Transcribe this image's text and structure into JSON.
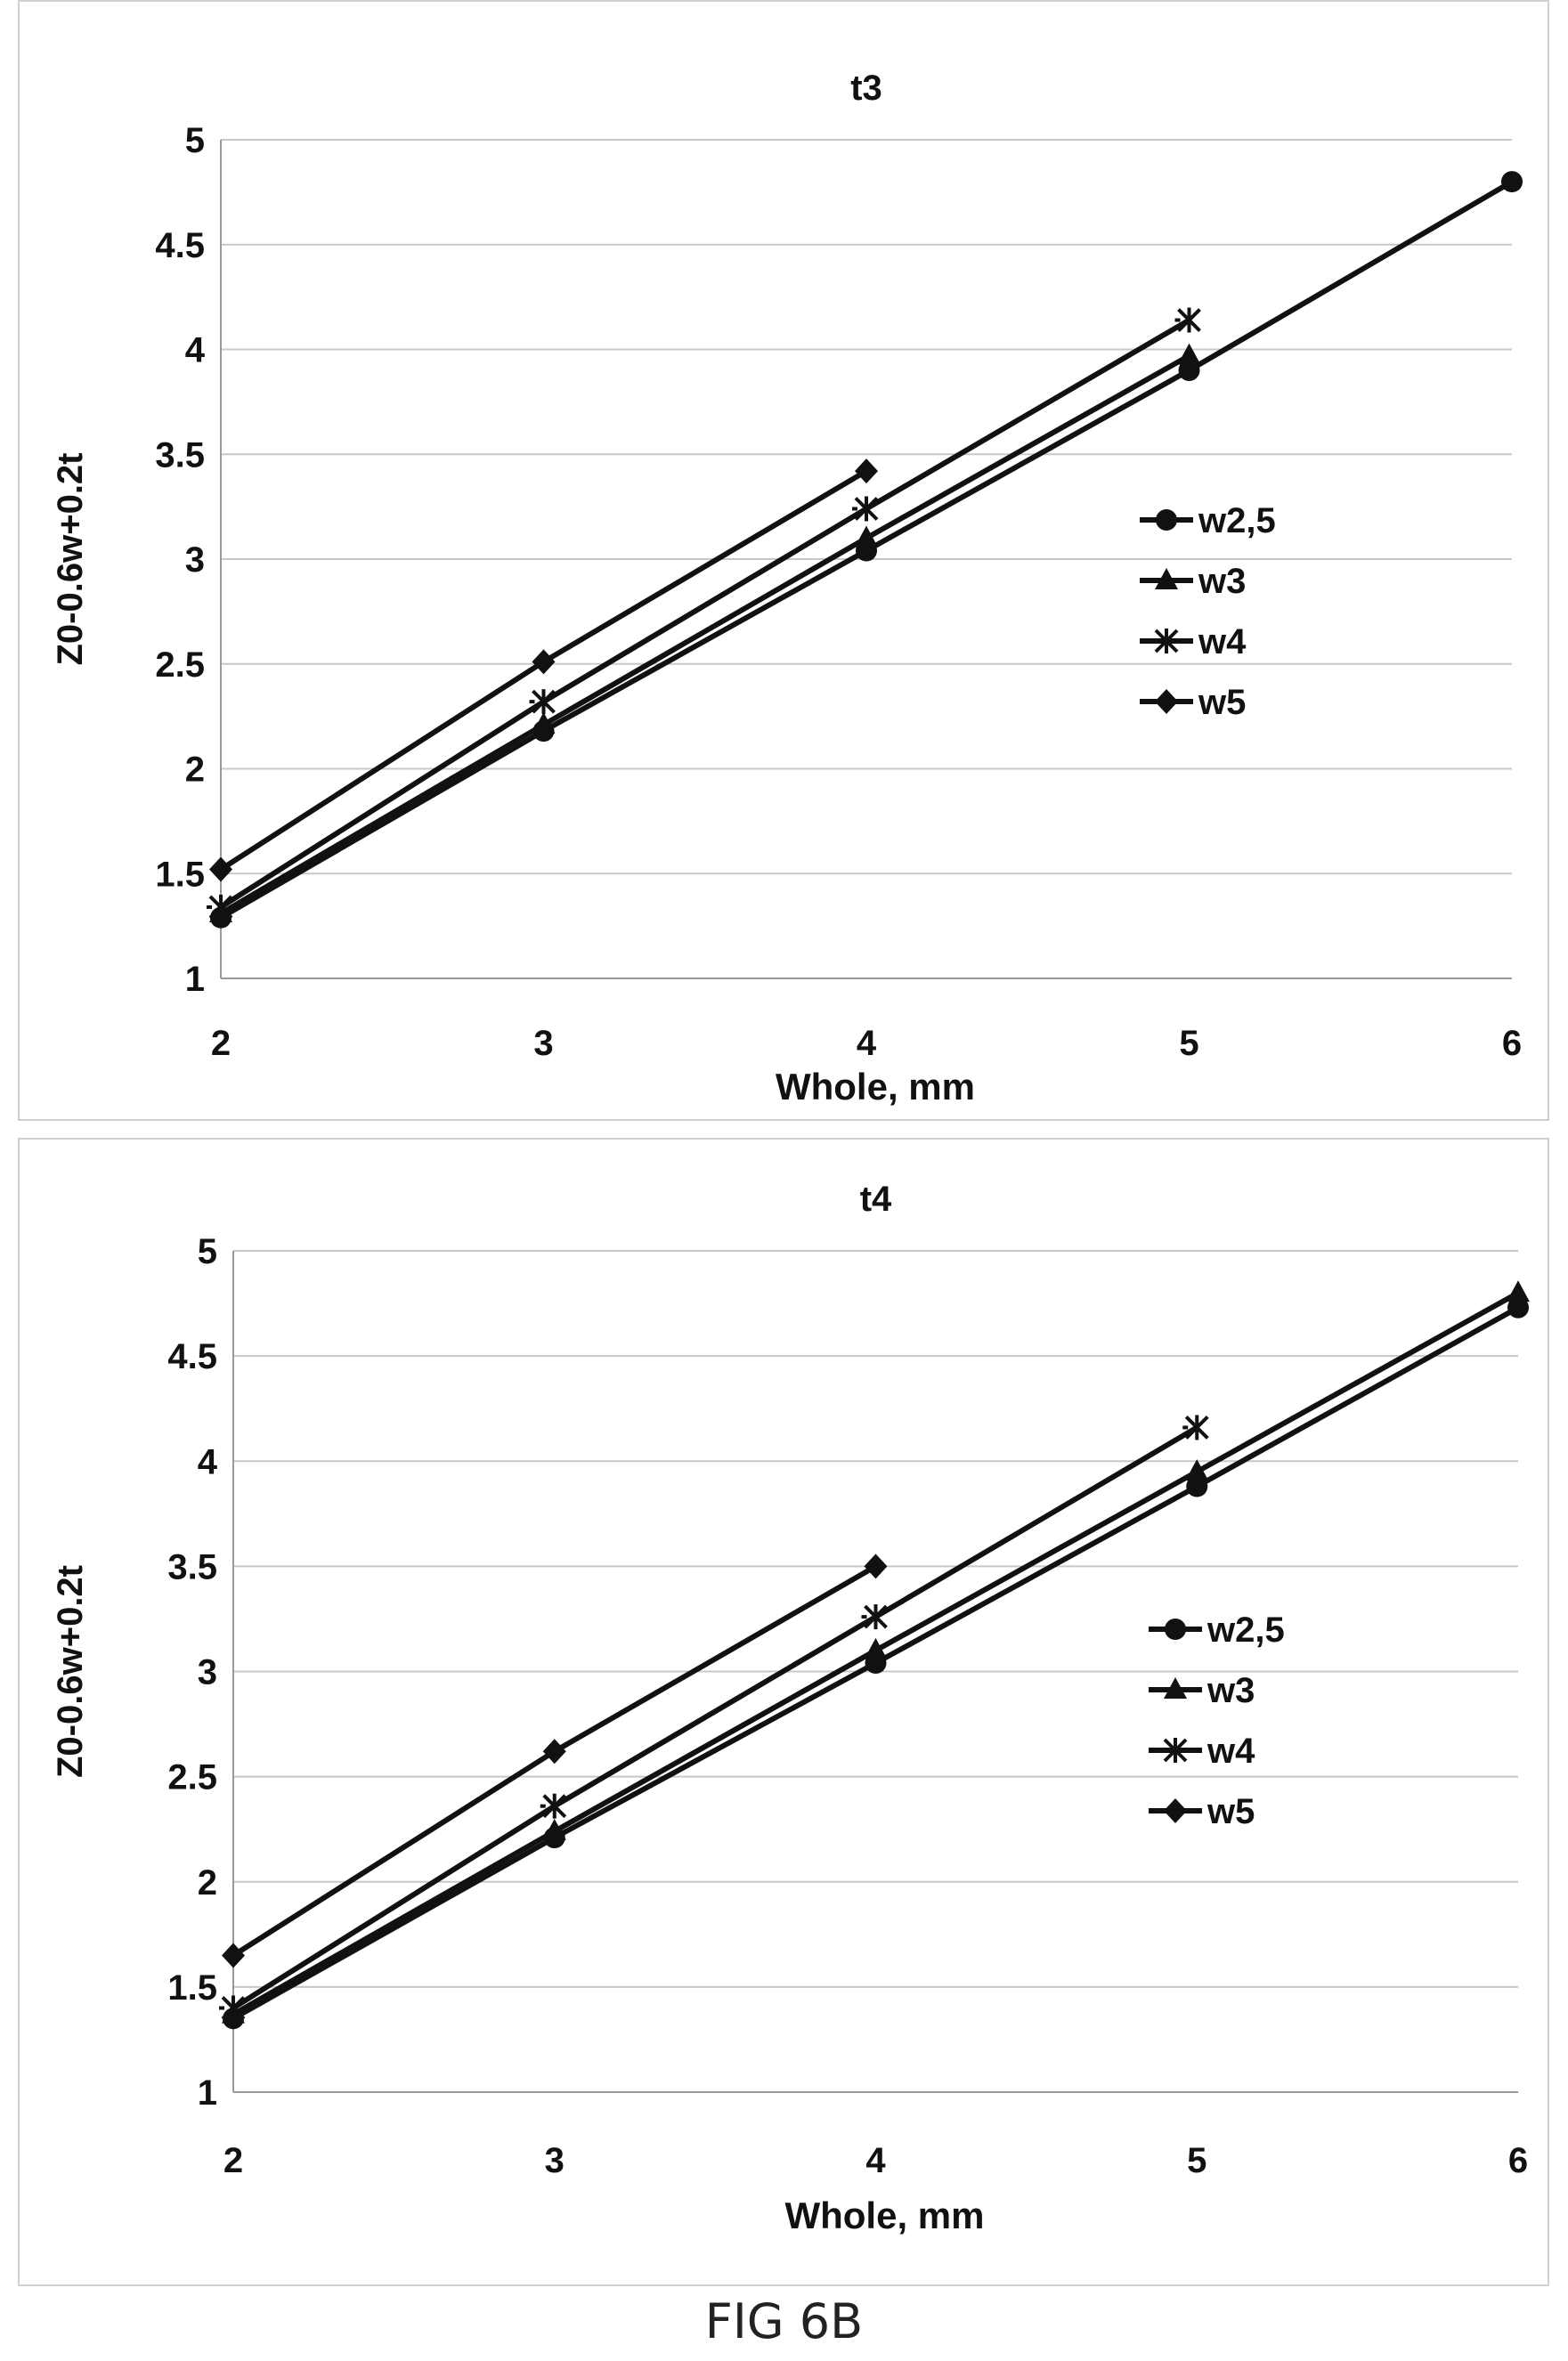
{
  "chart_data": [
    {
      "type": "line",
      "title": "t3",
      "xlabel": "Whole, mm",
      "ylabel": "Z0-0.6w+0.2t",
      "xlim": [
        2,
        6
      ],
      "ylim": [
        1,
        5
      ],
      "xticks": [
        "2",
        "3",
        "4",
        "5",
        "6"
      ],
      "yticks": [
        "1",
        "1.5",
        "2",
        "2.5",
        "3",
        "3.5",
        "4",
        "4.5",
        "5"
      ],
      "grid": "horizontal",
      "legend": "right",
      "series": [
        {
          "name": "w2,5",
          "marker": "circle",
          "x": [
            2,
            3,
            4,
            5,
            6
          ],
          "y": [
            1.29,
            2.18,
            3.04,
            3.9,
            4.8
          ]
        },
        {
          "name": "w3",
          "marker": "triangle",
          "x": [
            2,
            3,
            4,
            5
          ],
          "y": [
            1.31,
            2.21,
            3.1,
            3.97
          ]
        },
        {
          "name": "w4",
          "marker": "asterisk",
          "x": [
            2,
            3,
            4,
            5
          ],
          "y": [
            1.34,
            2.32,
            3.24,
            4.14
          ]
        },
        {
          "name": "w5",
          "marker": "diamond",
          "x": [
            2,
            3,
            4
          ],
          "y": [
            1.52,
            2.51,
            3.42
          ]
        }
      ]
    },
    {
      "type": "line",
      "title": "t4",
      "xlabel": "Whole, mm",
      "ylabel": "Z0-0.6w+0.2t",
      "xlim": [
        2,
        6
      ],
      "ylim": [
        1,
        5
      ],
      "xticks": [
        "2",
        "3",
        "4",
        "5",
        "6"
      ],
      "yticks": [
        "1",
        "1.5",
        "2",
        "2.5",
        "3",
        "3.5",
        "4",
        "4.5",
        "5"
      ],
      "grid": "horizontal",
      "legend": "right",
      "series": [
        {
          "name": "w2,5",
          "marker": "circle",
          "x": [
            2,
            3,
            4,
            5,
            6
          ],
          "y": [
            1.35,
            2.21,
            3.04,
            3.88,
            4.73
          ]
        },
        {
          "name": "w3",
          "marker": "triangle",
          "x": [
            2,
            3,
            4,
            5,
            6
          ],
          "y": [
            1.37,
            2.24,
            3.1,
            3.95,
            4.8
          ]
        },
        {
          "name": "w4",
          "marker": "asterisk",
          "x": [
            2,
            3,
            4,
            5
          ],
          "y": [
            1.4,
            2.36,
            3.26,
            4.16
          ]
        },
        {
          "name": "w5",
          "marker": "diamond",
          "x": [
            2,
            3,
            4
          ],
          "y": [
            1.65,
            2.62,
            3.5
          ]
        }
      ]
    }
  ],
  "caption": "FIG 6B",
  "colors": {
    "line": "#111111",
    "grid": "#c8c8c8",
    "axis": "#999999"
  }
}
